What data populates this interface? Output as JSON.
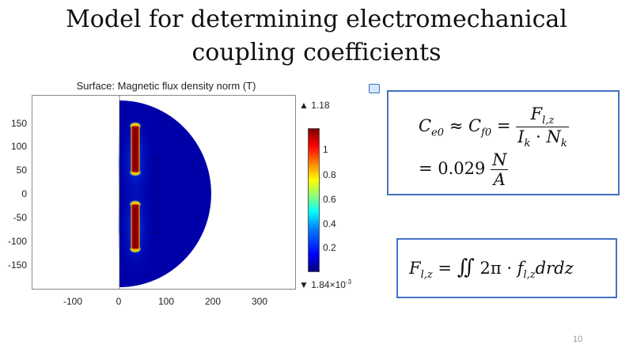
{
  "slide": {
    "title_line1": "Model for determining electromechanical",
    "title_line2": "coupling coefficients",
    "page_number": "10"
  },
  "plot": {
    "title": "Surface: Magnetic flux density norm (T)",
    "y_ticks": [
      "150",
      "100",
      "50",
      "0",
      "-50",
      "-100",
      "-150"
    ],
    "x_ticks": [
      "-100",
      "0",
      "100",
      "200",
      "300"
    ],
    "colorbar": {
      "max_label": "▲ 1.18",
      "min_label": "▼ 1.84×10",
      "min_exponent": "-3",
      "ticks": [
        "1",
        "0.8",
        "0.6",
        "0.4",
        "0.2"
      ]
    }
  },
  "equations": {
    "eq1_line1_lhs": "C",
    "eq1_sub1": "e0",
    "eq1_approx": "≈",
    "eq1_c2": "C",
    "eq1_sub2": "f0",
    "eq1_eq": "=",
    "eq1_num": "F",
    "eq1_num_sub": "l,z",
    "eq1_den_a": "I",
    "eq1_den_a_sub": "k",
    "eq1_den_dot": "·",
    "eq1_den_b": "N",
    "eq1_den_b_sub": "k",
    "eq1_line2_eq": "= 0.029",
    "eq1_unit_num": "N",
    "eq1_unit_den": "A",
    "eq2_lhs": "F",
    "eq2_lhs_sub": "l,z",
    "eq2_eq": "=",
    "eq2_integral": "∬",
    "eq2_rhs_a": "2π · ",
    "eq2_rhs_f": "f",
    "eq2_rhs_sub": "l,z",
    "eq2_rhs_tail": "drdz"
  },
  "colors": {
    "box_border": "#4472c4",
    "field_low": "#00007f",
    "field_high": "#7f0000"
  }
}
